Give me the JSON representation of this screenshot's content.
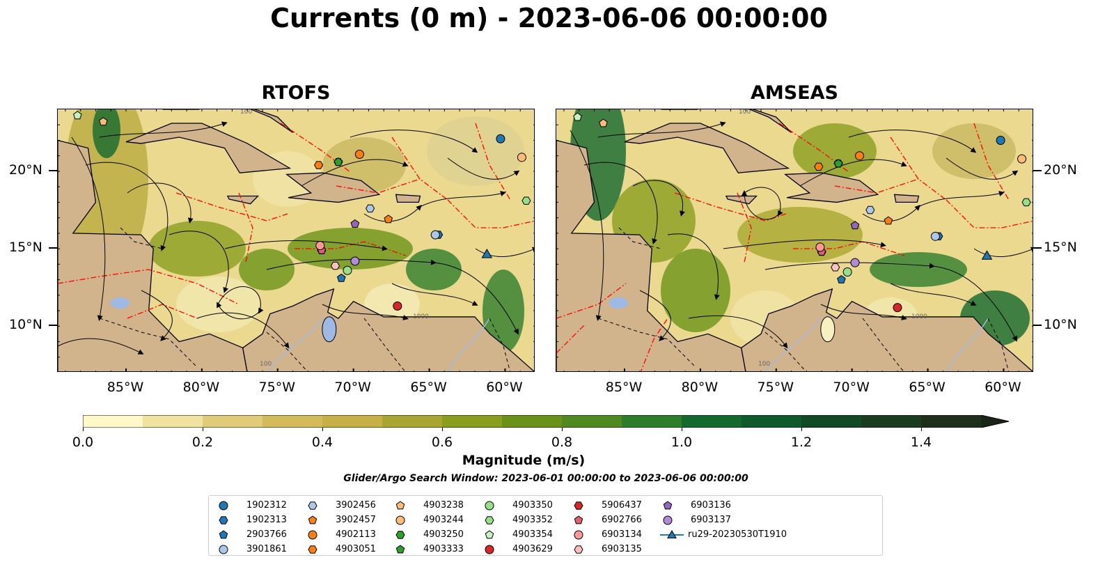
{
  "title": "Currents (0 m) - 2023-06-06 00:00:00",
  "panels": [
    {
      "name": "RTOFS"
    },
    {
      "name": "AMSEAS"
    }
  ],
  "colors": {
    "land": "#d1b48c",
    "water_body": "#9ebae4",
    "fronts": "#ff0000",
    "boundaries": "#000000"
  },
  "map": {
    "lon_range": [
      -89.5,
      -58
    ],
    "lat_range": [
      7,
      24
    ],
    "lon_ticks": [
      "85°W",
      "80°W",
      "75°W",
      "70°W",
      "65°W",
      "60°W"
    ],
    "lat_ticks": [
      "20°N",
      "15°N",
      "10°N"
    ],
    "contour_labels": [
      "100",
      "100",
      "1000"
    ]
  },
  "colorbar": {
    "label": "Magnitude (m/s)",
    "ticks": [
      "0.0",
      "0.2",
      "0.4",
      "0.6",
      "0.8",
      "1.0",
      "1.2",
      "1.4"
    ],
    "range": [
      0,
      1.5
    ],
    "extend": "max",
    "colors": [
      "#fff8c8",
      "#f0e2a0",
      "#e0cb78",
      "#d3bb5c",
      "#c6b148",
      "#a8a630",
      "#8a9d1e",
      "#6b9218",
      "#4e8a20",
      "#2e7d2a",
      "#14692e",
      "#0e5a2c",
      "#124a26",
      "#1a3d20",
      "#1e2f1a"
    ]
  },
  "search_window": "Glider/Argo Search Window: 2023-06-01 00:00:00 to 2023-06-06 00:00:00",
  "legend": [
    {
      "label": "1902312",
      "marker": "circle",
      "color": "#1f77b4"
    },
    {
      "label": "1902313",
      "marker": "hexagon",
      "color": "#1f77b4"
    },
    {
      "label": "2903766",
      "marker": "pentagon",
      "color": "#1f77b4"
    },
    {
      "label": "3901861",
      "marker": "circle",
      "color": "#aec7e8"
    },
    {
      "label": "3902456",
      "marker": "hexagon",
      "color": "#aec7e8"
    },
    {
      "label": "3902457",
      "marker": "pentagon",
      "color": "#ff7f0e"
    },
    {
      "label": "4902113",
      "marker": "circle",
      "color": "#ff7f0e"
    },
    {
      "label": "4903051",
      "marker": "hexagon",
      "color": "#ff7f0e"
    },
    {
      "label": "4903238",
      "marker": "pentagon",
      "color": "#ffbb78"
    },
    {
      "label": "4903244",
      "marker": "circle",
      "color": "#ffbb78"
    },
    {
      "label": "4903250",
      "marker": "hexagon",
      "color": "#2ca02c"
    },
    {
      "label": "4903333",
      "marker": "pentagon",
      "color": "#2ca02c"
    },
    {
      "label": "4903350",
      "marker": "circle",
      "color": "#98df8a"
    },
    {
      "label": "4903352",
      "marker": "hexagon",
      "color": "#98df8a"
    },
    {
      "label": "4903354",
      "marker": "pentagon",
      "color": "#c7f0c0"
    },
    {
      "label": "4903629",
      "marker": "circle",
      "color": "#d62728"
    },
    {
      "label": "5906437",
      "marker": "hexagon",
      "color": "#d62728"
    },
    {
      "label": "6902766",
      "marker": "pentagon",
      "color": "#e06070"
    },
    {
      "label": "6903134",
      "marker": "circle",
      "color": "#ff9896"
    },
    {
      "label": "6903135",
      "marker": "hexagon",
      "color": "#ffc0c0"
    },
    {
      "label": "6903136",
      "marker": "pentagon",
      "color": "#9467bd"
    },
    {
      "label": "6903137",
      "marker": "circle",
      "color": "#b28ad8"
    },
    {
      "label": "ru29-20230530T1910",
      "marker": "triangle-line",
      "color": "#1f77b4"
    }
  ],
  "observations": [
    {
      "id": "1902312",
      "lon": -60.3,
      "lat": 22.1
    },
    {
      "id": "1902313",
      "lon": -64.4,
      "lat": 15.9
    },
    {
      "id": "2903766",
      "lon": -70.8,
      "lat": 13.1
    },
    {
      "id": "3901861",
      "lon": -64.6,
      "lat": 15.9
    },
    {
      "id": "3902456",
      "lon": -68.9,
      "lat": 17.6
    },
    {
      "id": "3902457",
      "lon": -67.7,
      "lat": 16.9
    },
    {
      "id": "4902113",
      "lon": -69.6,
      "lat": 21.1
    },
    {
      "id": "4903051",
      "lon": -72.3,
      "lat": 20.4
    },
    {
      "id": "4903238",
      "lon": -86.5,
      "lat": 23.2
    },
    {
      "id": "4903244",
      "lon": -58.9,
      "lat": 20.9
    },
    {
      "id": "4903250",
      "lon": -71.0,
      "lat": 20.6
    },
    {
      "id": "4903333",
      "lon": -71.0,
      "lat": 20.6
    },
    {
      "id": "4903350",
      "lon": -70.4,
      "lat": 13.6
    },
    {
      "id": "4903352",
      "lon": -58.6,
      "lat": 18.1
    },
    {
      "id": "4903354",
      "lon": -88.2,
      "lat": 23.6
    },
    {
      "id": "4903629",
      "lon": -67.1,
      "lat": 11.3
    },
    {
      "id": "5906437",
      "lon": -72.1,
      "lat": 14.9
    },
    {
      "id": "6902766",
      "lon": -72.1,
      "lat": 14.9
    },
    {
      "id": "6903134",
      "lon": -72.2,
      "lat": 15.2
    },
    {
      "id": "6903135",
      "lon": -71.2,
      "lat": 13.9
    },
    {
      "id": "6903136",
      "lon": -69.9,
      "lat": 16.6
    },
    {
      "id": "6903137",
      "lon": -69.9,
      "lat": 14.2
    },
    {
      "id": "ru29-20230530T1910",
      "lon": -61.2,
      "lat": 14.6
    }
  ]
}
